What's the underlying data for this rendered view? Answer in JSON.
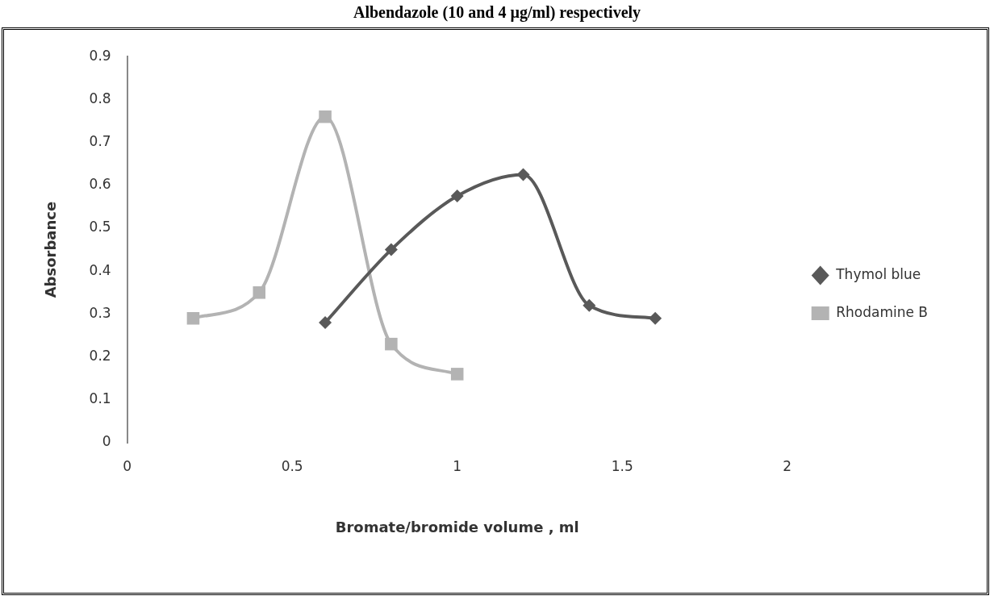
{
  "chart_data": {
    "type": "line",
    "title": "Albendazole (10 and 4 µg/ml) respectively",
    "xlabel": "Bromate/bromide volume , ml",
    "ylabel": "Absorbance",
    "xlim": [
      0,
      2
    ],
    "xticks": [
      0,
      0.5,
      1,
      1.5,
      2
    ],
    "ylim": [
      0,
      0.9
    ],
    "yticks": [
      0,
      0.1,
      0.2,
      0.3,
      0.4,
      0.5,
      0.6,
      0.7,
      0.8,
      0.9
    ],
    "grid": false,
    "legend": "right",
    "series": [
      {
        "name": "Thymol blue",
        "color": "#595959",
        "marker": "diamond",
        "x": [
          0.6,
          0.8,
          1.0,
          1.2,
          1.4,
          1.6
        ],
        "values": [
          0.28,
          0.45,
          0.575,
          0.625,
          0.32,
          0.29
        ]
      },
      {
        "name": "Rhodamine B",
        "color": "#b3b3b3",
        "marker": "square",
        "x": [
          0.2,
          0.4,
          0.6,
          0.8,
          1.0
        ],
        "values": [
          0.29,
          0.35,
          0.76,
          0.23,
          0.16
        ]
      }
    ]
  }
}
